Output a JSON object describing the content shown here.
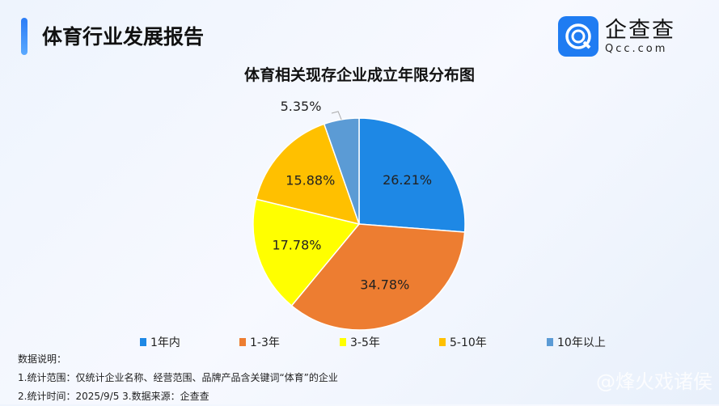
{
  "header": {
    "title": "体育行业发展报告"
  },
  "logo": {
    "cn": "企查查",
    "en": "Qcc.com"
  },
  "chart_data": {
    "type": "pie",
    "title": "体育相关现存企业成立年限分布图",
    "categories": [
      "1年内",
      "1-3年",
      "3-5年",
      "5-10年",
      "10年以上"
    ],
    "values": [
      26.21,
      34.78,
      17.78,
      15.88,
      5.35
    ],
    "labels": [
      "26.21%",
      "34.78%",
      "17.78%",
      "15.88%",
      "5.35%"
    ],
    "colors": [
      "#1e88e5",
      "#ed7d31",
      "#ffff00",
      "#ffc000",
      "#5b9bd5"
    ],
    "legend_position": "bottom"
  },
  "notes": {
    "heading": "数据说明：",
    "line1": "1.统计范围：仅统计企业名称、经营范围、品牌产品含关键词“体育”的企业",
    "line2": "2.统计时间：2025/9/5  3.数据来源：企查查"
  },
  "watermark": "@烽火戏诸侯"
}
